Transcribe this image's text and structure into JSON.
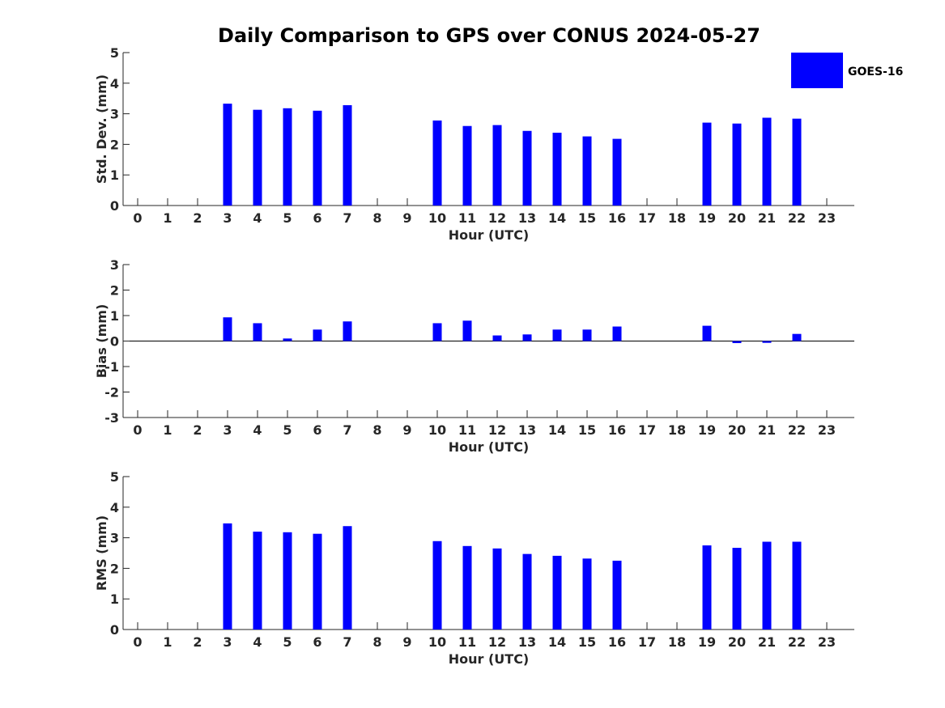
{
  "title": "Daily Comparison to GPS over CONUS 2024-05-27",
  "legend": {
    "label": "GOES-16",
    "color": "#0000ff"
  },
  "bar_color": "#0000ff",
  "chart_data": [
    {
      "type": "bar",
      "name": "std-dev",
      "xlabel": "Hour (UTC)",
      "ylabel": "Std. Dev. (mm)",
      "ylim": [
        0,
        5
      ],
      "yticks": [
        "0",
        "1",
        "2",
        "3",
        "4",
        "5"
      ],
      "categories": [
        "0",
        "1",
        "2",
        "3",
        "4",
        "5",
        "6",
        "7",
        "8",
        "9",
        "10",
        "11",
        "12",
        "13",
        "14",
        "15",
        "16",
        "17",
        "18",
        "19",
        "20",
        "21",
        "22",
        "23"
      ],
      "series": [
        {
          "name": "GOES-16",
          "values": [
            null,
            null,
            null,
            3.33,
            3.13,
            3.18,
            3.1,
            3.28,
            null,
            null,
            2.78,
            2.6,
            2.63,
            2.44,
            2.38,
            2.26,
            2.18,
            null,
            null,
            2.71,
            2.68,
            2.87,
            2.84,
            null
          ]
        }
      ]
    },
    {
      "type": "bar",
      "name": "bias",
      "xlabel": "Hour (UTC)",
      "ylabel": "Bias (mm)",
      "ylim": [
        -3,
        3
      ],
      "yticks": [
        "-3",
        "-2",
        "-1",
        "0",
        "1",
        "2",
        "3"
      ],
      "categories": [
        "0",
        "1",
        "2",
        "3",
        "4",
        "5",
        "6",
        "7",
        "8",
        "9",
        "10",
        "11",
        "12",
        "13",
        "14",
        "15",
        "16",
        "17",
        "18",
        "19",
        "20",
        "21",
        "22",
        "23"
      ],
      "series": [
        {
          "name": "GOES-16",
          "values": [
            null,
            null,
            null,
            0.93,
            0.7,
            0.1,
            0.45,
            0.77,
            null,
            null,
            0.7,
            0.8,
            0.22,
            0.26,
            0.45,
            0.45,
            0.57,
            null,
            null,
            0.6,
            -0.08,
            -0.07,
            0.28,
            null
          ]
        }
      ]
    },
    {
      "type": "bar",
      "name": "rms",
      "xlabel": "Hour (UTC)",
      "ylabel": "RMS (mm)",
      "ylim": [
        0,
        5
      ],
      "yticks": [
        "0",
        "1",
        "2",
        "3",
        "4",
        "5"
      ],
      "categories": [
        "0",
        "1",
        "2",
        "3",
        "4",
        "5",
        "6",
        "7",
        "8",
        "9",
        "10",
        "11",
        "12",
        "13",
        "14",
        "15",
        "16",
        "17",
        "18",
        "19",
        "20",
        "21",
        "22",
        "23"
      ],
      "series": [
        {
          "name": "GOES-16",
          "values": [
            null,
            null,
            null,
            3.47,
            3.2,
            3.18,
            3.13,
            3.38,
            null,
            null,
            2.89,
            2.73,
            2.65,
            2.47,
            2.41,
            2.32,
            2.25,
            null,
            null,
            2.75,
            2.67,
            2.87,
            2.87,
            null
          ]
        }
      ]
    }
  ]
}
